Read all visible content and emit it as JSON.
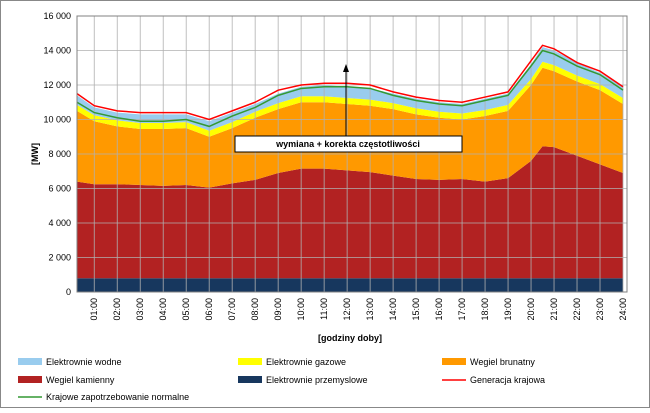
{
  "chart_data": {
    "type": "stacked_area",
    "y_label": "[MW]",
    "x_label": "[godziny doby]",
    "annotation": "wymiana + korekta częstotliwości",
    "x": [
      0.25,
      1,
      2,
      3,
      4,
      5,
      6,
      7,
      8,
      9,
      10,
      11,
      12,
      13,
      14,
      15,
      16,
      17,
      18,
      19,
      20,
      20.5,
      21,
      22,
      23,
      24
    ],
    "xlim": [
      0.25,
      24
    ],
    "xticks": [
      {
        "value": 1,
        "label": "01:00"
      },
      {
        "value": 2,
        "label": "02:00"
      },
      {
        "value": 3,
        "label": "03:00"
      },
      {
        "value": 4,
        "label": "04:00"
      },
      {
        "value": 5,
        "label": "05:00"
      },
      {
        "value": 6,
        "label": "06:00"
      },
      {
        "value": 7,
        "label": "07:00"
      },
      {
        "value": 8,
        "label": "08:00"
      },
      {
        "value": 9,
        "label": "09:00"
      },
      {
        "value": 10,
        "label": "10:00"
      },
      {
        "value": 11,
        "label": "11:00"
      },
      {
        "value": 12,
        "label": "12:00"
      },
      {
        "value": 13,
        "label": "13:00"
      },
      {
        "value": 14,
        "label": "14:00"
      },
      {
        "value": 15,
        "label": "15:00"
      },
      {
        "value": 16,
        "label": "16:00"
      },
      {
        "value": 17,
        "label": "17:00"
      },
      {
        "value": 18,
        "label": "18:00"
      },
      {
        "value": 19,
        "label": "19:00"
      },
      {
        "value": 20,
        "label": "20:00"
      },
      {
        "value": 21,
        "label": "21:00"
      },
      {
        "value": 22,
        "label": "22:00"
      },
      {
        "value": 23,
        "label": "23:00"
      },
      {
        "value": 24,
        "label": "24:00"
      }
    ],
    "ylim": [
      0,
      16000
    ],
    "yticks": [
      0,
      {
        "value": 2000,
        "label": "2 000"
      },
      {
        "value": 4000,
        "label": "4 000"
      },
      {
        "value": 6000,
        "label": "6 000"
      },
      {
        "value": 8000,
        "label": "8 000"
      },
      {
        "value": 10000,
        "label": "10 000"
      },
      {
        "value": 12000,
        "label": "12 000"
      },
      {
        "value": 14000,
        "label": "14 000"
      },
      {
        "value": 16000,
        "label": "16 000"
      }
    ],
    "grid": true,
    "series": [
      {
        "name": "Elektrownie wodne",
        "kind": "area",
        "color": "#99ccee",
        "values": [
          550,
          450,
          450,
          500,
          500,
          450,
          550,
          550,
          450,
          550,
          550,
          650,
          650,
          650,
          550,
          550,
          550,
          550,
          650,
          650,
          850,
          850,
          850,
          750,
          650,
          650
        ]
      },
      {
        "name": "Elektrownie gazowe",
        "kind": "area",
        "color": "#ffff00",
        "values": [
          350,
          350,
          350,
          350,
          350,
          350,
          350,
          350,
          350,
          350,
          350,
          350,
          350,
          350,
          350,
          350,
          350,
          350,
          350,
          350,
          350,
          350,
          350,
          350,
          350,
          350
        ]
      },
      {
        "name": "Wegiel brunatny",
        "kind": "area",
        "color": "#ff9900",
        "values": [
          4100,
          3650,
          3350,
          3250,
          3300,
          3300,
          2950,
          3200,
          3600,
          3700,
          3850,
          3850,
          3850,
          3850,
          3850,
          3750,
          3600,
          3450,
          3800,
          3900,
          4400,
          4550,
          4400,
          4300,
          4300,
          4000
        ]
      },
      {
        "name": "Wegiel kamienny",
        "kind": "area",
        "color": "#b22222",
        "values": [
          5600,
          5450,
          5450,
          5400,
          5350,
          5400,
          5250,
          5500,
          5700,
          6100,
          6350,
          6350,
          6250,
          6150,
          5950,
          5750,
          5700,
          5750,
          5600,
          5800,
          6800,
          7650,
          7600,
          7100,
          6600,
          6100
        ]
      },
      {
        "name": "Elektrownie przemyslowe",
        "kind": "area",
        "color": "#17375e",
        "values": [
          800,
          800,
          800,
          800,
          800,
          800,
          800,
          800,
          800,
          800,
          800,
          800,
          800,
          800,
          800,
          800,
          800,
          800,
          800,
          800,
          800,
          800,
          800,
          800,
          800,
          800
        ]
      },
      {
        "name": "Generacja krajowa",
        "kind": "line",
        "color": "#ff0000",
        "values": [
          11500,
          10800,
          10500,
          10400,
          10400,
          10400,
          10000,
          10500,
          11000,
          11700,
          12000,
          12100,
          12100,
          12000,
          11600,
          11300,
          11100,
          11000,
          11300,
          11600,
          13400,
          14300,
          14100,
          13300,
          12800,
          11900
        ]
      },
      {
        "name": "Krajowe zapotrzebowanie normalne",
        "kind": "line",
        "color": "#339933",
        "values": [
          11000,
          10400,
          10100,
          9900,
          9900,
          10000,
          9600,
          10200,
          10700,
          11400,
          11800,
          11900,
          11900,
          11800,
          11400,
          11100,
          10900,
          10800,
          11100,
          11400,
          13100,
          14000,
          13800,
          13100,
          12600,
          11700
        ]
      }
    ]
  }
}
